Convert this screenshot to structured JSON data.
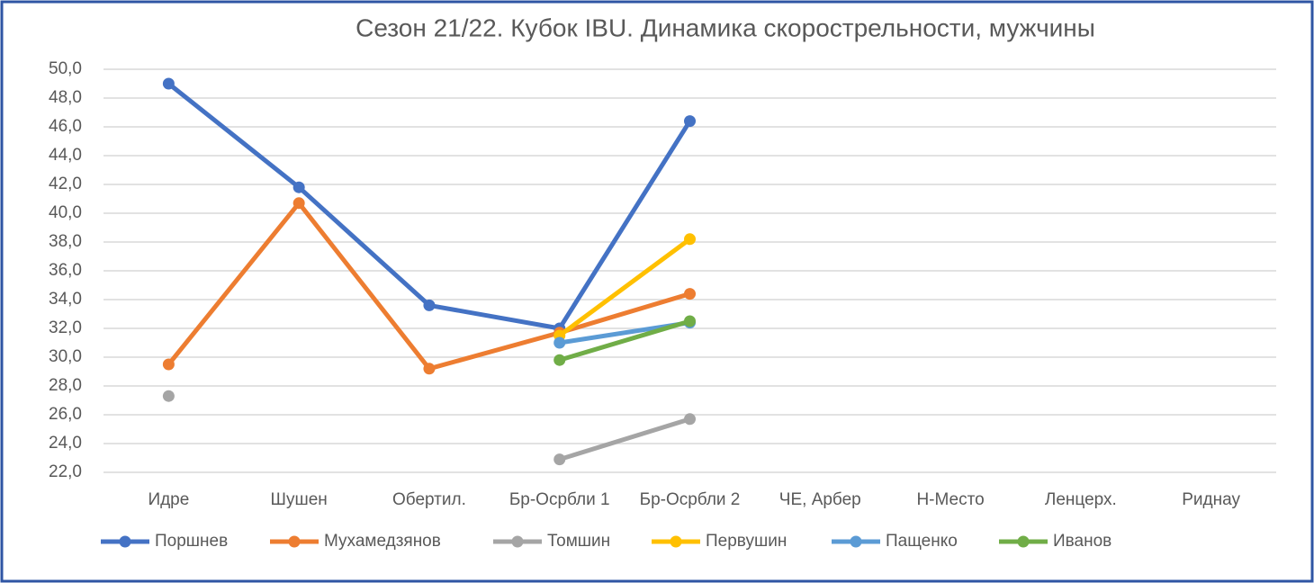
{
  "chart_data": {
    "type": "line",
    "title": "Сезон 21/22. Кубок IBU. Динамика скорострельности,  мужчины",
    "categories": [
      "Идре",
      "Шушен",
      "Обертил.",
      "Бр-Осрбли 1",
      "Бр-Осрбли 2",
      "ЧЕ, Арбер",
      "Н-Место",
      "Ленцерх.",
      "Риднау"
    ],
    "series": [
      {
        "name": "Поршнев",
        "color": "#4472c4",
        "values": [
          49.0,
          41.8,
          33.6,
          32.0,
          46.4,
          null,
          null,
          null,
          null
        ]
      },
      {
        "name": "Мухамедзянов",
        "color": "#ed7d31",
        "values": [
          29.5,
          40.7,
          29.2,
          31.7,
          34.4,
          null,
          null,
          null,
          null
        ]
      },
      {
        "name": "Томшин",
        "color": "#a5a5a5",
        "values": [
          27.3,
          null,
          null,
          22.9,
          25.7,
          null,
          null,
          null,
          null
        ]
      },
      {
        "name": "Первушин",
        "color": "#ffc000",
        "values": [
          null,
          null,
          null,
          31.5,
          38.2,
          null,
          null,
          null,
          null
        ]
      },
      {
        "name": "Пащенко",
        "color": "#5b9bd5",
        "values": [
          null,
          null,
          null,
          31.0,
          32.4,
          null,
          null,
          null,
          null
        ]
      },
      {
        "name": "Иванов",
        "color": "#70ad47",
        "values": [
          null,
          null,
          null,
          29.8,
          32.5,
          null,
          null,
          null,
          null
        ]
      }
    ],
    "ylim": [
      22,
      50
    ],
    "yticks": [
      {
        "value": 22,
        "label": "22,0"
      },
      {
        "value": 24,
        "label": "24,0"
      },
      {
        "value": 26,
        "label": "26,0"
      },
      {
        "value": 28,
        "label": "28,0"
      },
      {
        "value": 30,
        "label": "30,0"
      },
      {
        "value": 32,
        "label": "32,0"
      },
      {
        "value": 34,
        "label": "34,0"
      },
      {
        "value": 36,
        "label": "36,0"
      },
      {
        "value": 38,
        "label": "38,0"
      },
      {
        "value": 40,
        "label": "40,0"
      },
      {
        "value": 42,
        "label": "42,0"
      },
      {
        "value": 44,
        "label": "44,0"
      },
      {
        "value": 46,
        "label": "46,0"
      },
      {
        "value": 48,
        "label": "48,0"
      },
      {
        "value": 50,
        "label": "50,0"
      }
    ],
    "grid": true,
    "legend": "bottom"
  }
}
